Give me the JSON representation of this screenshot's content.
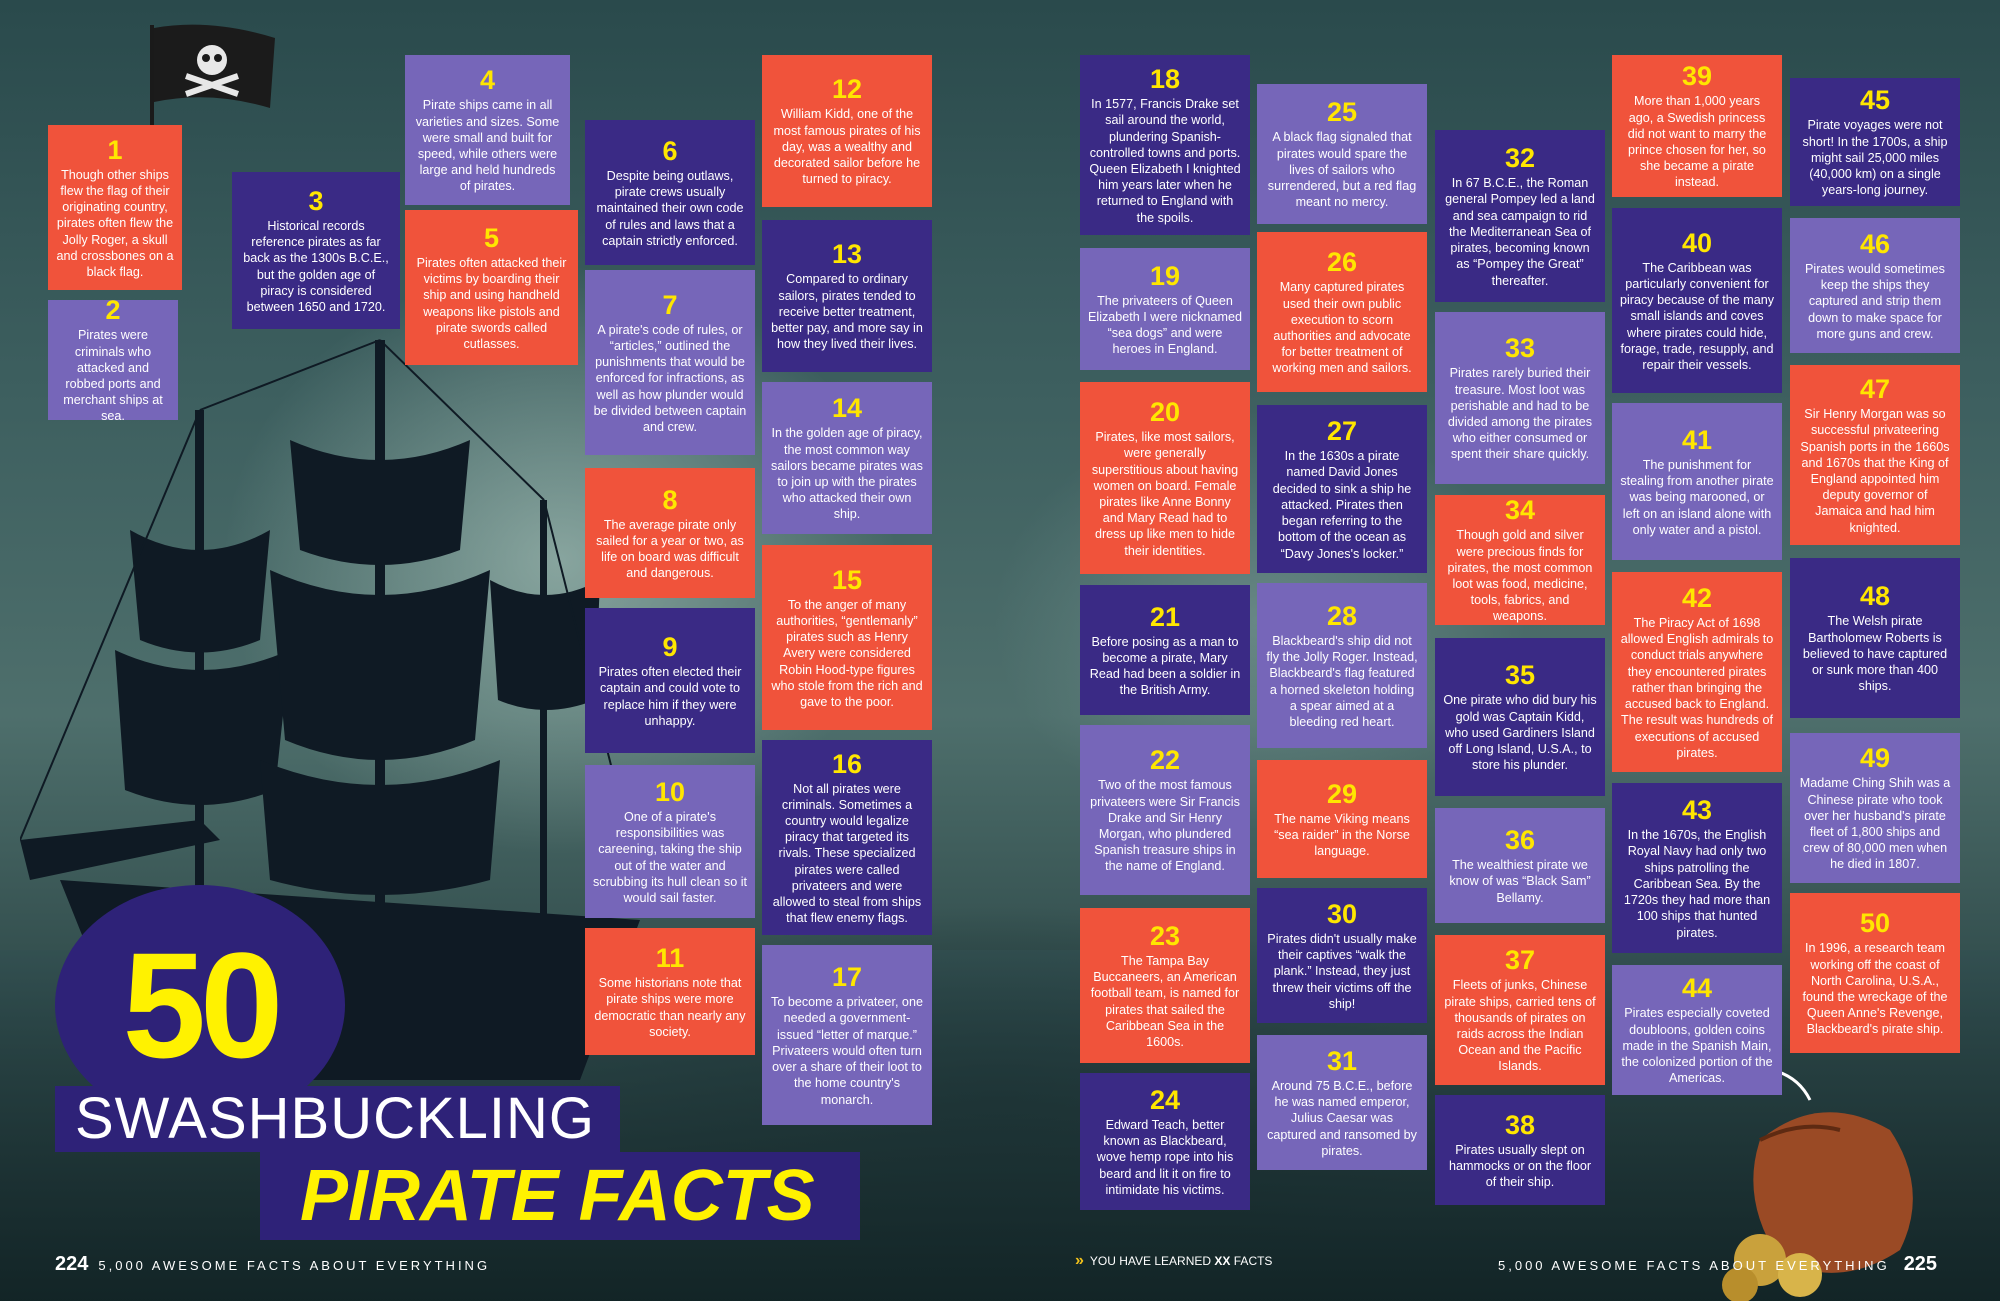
{
  "title": {
    "big_number": "50",
    "line1": "SWASHBUCKLING",
    "line2": "PIRATE FACTS"
  },
  "footer": {
    "left_page": "224",
    "left_text": "5,000 AWESOME FACTS ABOUT EVERYTHING",
    "center_text_pre": "YOU HAVE LEARNED",
    "center_text_count": "XX",
    "center_text_post": "FACTS",
    "right_text": "5,000 AWESOME FACTS ABOUT EVERYTHING",
    "right_page": "225"
  },
  "icons": [
    "jolly-roger-flag-icon",
    "pirate-ship-icon",
    "treasure-pouch-icon",
    "chevron-icon"
  ],
  "colors": {
    "orange": "#f0533b",
    "purple": "#3a2a85",
    "lavender": "#7666b9",
    "yellow": "#ffe600"
  },
  "facts": [
    {
      "n": "1",
      "text": "Though other ships flew the flag of their originating country, pirates often flew the Jolly Roger, a skull and crossbones on a black flag."
    },
    {
      "n": "2",
      "text": "Pirates were criminals who attacked and robbed ports and merchant ships at sea."
    },
    {
      "n": "3",
      "text": "Historical records reference pirates as far back as the 1300s B.C.E., but the golden age of piracy is considered between 1650 and 1720."
    },
    {
      "n": "4",
      "text": "Pirate ships came in all varieties and sizes. Some were small and built for speed, while others were large and held hundreds of pirates."
    },
    {
      "n": "5",
      "text": "Pirates often attacked their victims by boarding their ship and using handheld weapons like pistols and pirate swords called cutlasses."
    },
    {
      "n": "6",
      "text": "Despite being outlaws, pirate crews usually maintained their own code of rules and laws that a captain strictly enforced."
    },
    {
      "n": "7",
      "text": "A pirate's code of rules, or “articles,” outlined the punishments that would be enforced for infractions, as well as how plunder would be divided between captain and crew."
    },
    {
      "n": "8",
      "text": "The average pirate only sailed for a year or two, as life on board was difficult and dangerous."
    },
    {
      "n": "9",
      "text": "Pirates often elected their captain and could vote to replace him if they were unhappy."
    },
    {
      "n": "10",
      "text": "One of a pirate's responsibilities was careening, taking the ship out of the water and scrubbing its hull clean so it would sail faster."
    },
    {
      "n": "11",
      "text": "Some historians note that pirate ships were more democratic than nearly any society."
    },
    {
      "n": "12",
      "text": "William Kidd, one of the most famous pirates of his day, was a wealthy and decorated sailor before he turned to piracy."
    },
    {
      "n": "13",
      "text": "Compared to ordinary sailors, pirates tended to receive better treatment, better pay, and more say in how they lived their lives."
    },
    {
      "n": "14",
      "text": "In the golden age of piracy, the most common way sailors became pirates was to join up with the pirates who attacked their own ship."
    },
    {
      "n": "15",
      "text": "To the anger of many authorities, “gentlemanly” pirates such as Henry Avery were considered Robin Hood-type figures who stole from the rich and gave to the poor."
    },
    {
      "n": "16",
      "text": "Not all pirates were criminals. Sometimes a country would legalize piracy that targeted its rivals. These specialized pirates were called privateers and were allowed to steal from ships that flew enemy flags."
    },
    {
      "n": "17",
      "text": "To become a privateer, one needed a government-issued “letter of marque.” Privateers would often turn over a share of their loot to the home country's monarch."
    },
    {
      "n": "18",
      "text": "In 1577, Francis Drake set sail around the world, plundering Spanish-controlled towns and ports. Queen Elizabeth I knighted him years later when he returned to England with the spoils."
    },
    {
      "n": "19",
      "text": "The privateers of Queen Elizabeth I were nicknamed “sea dogs” and were heroes in England."
    },
    {
      "n": "20",
      "text": "Pirates, like most sailors, were generally superstitious about having women on board. Female pirates like Anne Bonny and Mary Read had to dress up like men to hide their identities."
    },
    {
      "n": "21",
      "text": "Before posing as a man to become a pirate, Mary Read had been a soldier in the British Army."
    },
    {
      "n": "22",
      "text": "Two of the most famous privateers were Sir Francis Drake and Sir Henry Morgan, who plundered Spanish treasure ships in the name of England."
    },
    {
      "n": "23",
      "text": "The Tampa Bay Buccaneers, an American football team, is named for pirates that sailed the Caribbean Sea in the 1600s."
    },
    {
      "n": "24",
      "text": "Edward Teach, better known as Blackbeard, wove hemp rope into his beard and lit it on fire to intimidate his victims."
    },
    {
      "n": "25",
      "text": "A black flag signaled that pirates would spare the lives of sailors who surrendered, but a red flag meant no mercy."
    },
    {
      "n": "26",
      "text": "Many captured pirates used their own public execution to scorn authorities and advocate for better treatment of working men and sailors."
    },
    {
      "n": "27",
      "text": "In the 1630s a pirate named David Jones decided to sink a ship he attacked. Pirates then began referring to the bottom of the ocean as “Davy Jones's locker.”"
    },
    {
      "n": "28",
      "text": "Blackbeard's ship did not fly the Jolly Roger. Instead, Blackbeard's flag featured a horned skeleton holding a spear aimed at a bleeding red heart."
    },
    {
      "n": "29",
      "text": "The name Viking means “sea raider” in the Norse language."
    },
    {
      "n": "30",
      "text": "Pirates didn't usually make their captives “walk the plank.” Instead, they just threw their victims off the ship!"
    },
    {
      "n": "31",
      "text": "Around 75 B.C.E., before he was named emperor, Julius Caesar was captured and ransomed by pirates."
    },
    {
      "n": "32",
      "text": "In 67 B.C.E., the Roman general Pompey led a land and sea campaign to rid the Mediterranean Sea of pirates, becoming known as “Pompey the Great” thereafter."
    },
    {
      "n": "33",
      "text": "Pirates rarely buried their treasure. Most loot was perishable and had to be divided among the pirates who either consumed or spent their share quickly."
    },
    {
      "n": "34",
      "text": "Though gold and silver were precious finds for pirates, the most common loot was food, medicine, tools, fabrics, and weapons."
    },
    {
      "n": "35",
      "text": "One pirate who did bury his gold was Captain Kidd, who used Gardiners Island off Long Island, U.S.A., to store his plunder."
    },
    {
      "n": "36",
      "text": "The wealthiest pirate we know of was “Black Sam” Bellamy."
    },
    {
      "n": "37",
      "text": "Fleets of junks, Chinese pirate ships, carried tens of thousands of pirates on raids across the Indian Ocean and the Pacific Islands."
    },
    {
      "n": "38",
      "text": "Pirates usually slept on hammocks or on the floor of their ship."
    },
    {
      "n": "39",
      "text": "More than 1,000 years ago, a Swedish princess did not want to marry the prince chosen for her, so she became a pirate instead."
    },
    {
      "n": "40",
      "text": "The Caribbean was particularly convenient for piracy because of the many small islands and coves where pirates could hide, forage, trade, resupply, and repair their vessels."
    },
    {
      "n": "41",
      "text": "The punishment for stealing from another pirate was being marooned, or left on an island alone with only water and a pistol."
    },
    {
      "n": "42",
      "text": "The Piracy Act of 1698 allowed English admirals to conduct trials anywhere they encountered pirates rather than bringing the accused back to England. The result was hundreds of executions of accused pirates."
    },
    {
      "n": "43",
      "text": "In the 1670s, the English Royal Navy had only two ships patrolling the Caribbean Sea. By the 1720s they had more than 100 ships that hunted pirates."
    },
    {
      "n": "44",
      "text": "Pirates especially coveted doubloons, golden coins made in the Spanish Main, the colonized portion of the Americas."
    },
    {
      "n": "45",
      "text": "Pirate voyages were not short! In the 1700s, a ship might sail 25,000 miles (40,000 km) on a single years-long journey."
    },
    {
      "n": "46",
      "text": "Pirates would sometimes keep the ships they captured and strip them down to make space for more guns and crew."
    },
    {
      "n": "47",
      "text": "Sir Henry Morgan was so successful privateering Spanish ports in the 1660s and 1670s that the King of England appointed him deputy governor of Jamaica and had him knighted."
    },
    {
      "n": "48",
      "text": "The Welsh pirate Bartholomew Roberts is believed to have captured or sunk more than 400 ships."
    },
    {
      "n": "49",
      "text": "Madame Ching Shih was a Chinese pirate who took over her husband's pirate fleet of 1,800 ships and crew of 80,000 men when he died in 1807."
    },
    {
      "n": "50",
      "text": "In 1996, a research team working off the coast of North Carolina, U.S.A., found the wreckage of the Queen Anne's Revenge, Blackbeard's pirate ship."
    }
  ]
}
